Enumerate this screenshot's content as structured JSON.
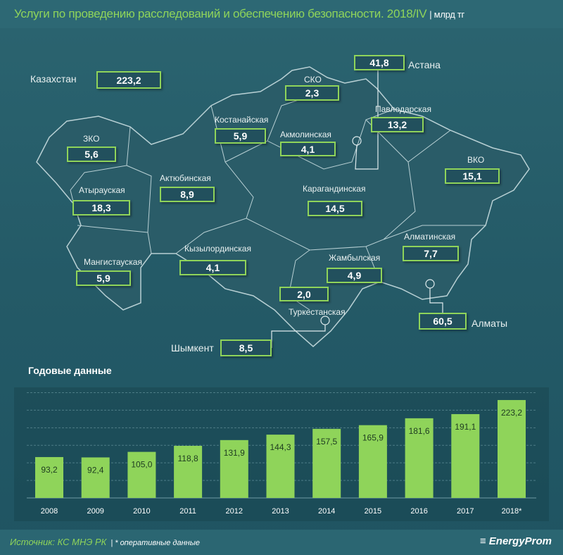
{
  "title": "Услуги по проведению расследований и обеспечению безопасности. 2018/IV",
  "unit": "| млрд тг",
  "map": {
    "total": {
      "name": "Казахстан",
      "value": "223,2"
    },
    "regions": [
      {
        "id": "sko",
        "name": "СКО",
        "value": "2,3"
      },
      {
        "id": "astana",
        "name": "Астана",
        "value": "41,8"
      },
      {
        "id": "kostanay",
        "name": "Костанайская",
        "value": "5,9"
      },
      {
        "id": "pavlodar",
        "name": "Павлодарская",
        "value": "13,2"
      },
      {
        "id": "akmola",
        "name": "Акмолинская",
        "value": "4,1"
      },
      {
        "id": "zko",
        "name": "ЗКО",
        "value": "5,6"
      },
      {
        "id": "vko",
        "name": "ВКО",
        "value": "15,1"
      },
      {
        "id": "aktobe",
        "name": "Актюбинская",
        "value": "8,9"
      },
      {
        "id": "atyrau",
        "name": "Атырауская",
        "value": "18,3"
      },
      {
        "id": "karaganda",
        "name": "Карагандинская",
        "value": "14,5"
      },
      {
        "id": "almatyobl",
        "name": "Алматинская",
        "value": "7,7"
      },
      {
        "id": "kyzylorda",
        "name": "Кызылординская",
        "value": "4,1"
      },
      {
        "id": "zhambyl",
        "name": "Жамбылская",
        "value": "4,9"
      },
      {
        "id": "mangistau",
        "name": "Мангистауская",
        "value": "5,9"
      },
      {
        "id": "turkestan",
        "name": "Туркестанская",
        "value": "2,0"
      },
      {
        "id": "almaty",
        "name": "Алматы",
        "value": "60,5"
      },
      {
        "id": "shymkent",
        "name": "Шымкент",
        "value": "8,5"
      }
    ]
  },
  "section_title": "Годовые данные",
  "chart_data": {
    "type": "bar",
    "categories": [
      "2008",
      "2009",
      "2010",
      "2011",
      "2012",
      "2013",
      "2014",
      "2015",
      "2016",
      "2017",
      "2018*"
    ],
    "values": [
      93.2,
      92.4,
      105.0,
      118.8,
      131.9,
      144.3,
      157.5,
      165.9,
      181.6,
      191.1,
      223.2
    ],
    "value_labels": [
      "93,2",
      "92,4",
      "105,0",
      "118,8",
      "131,9",
      "144,3",
      "157,5",
      "165,9",
      "181,6",
      "191,1",
      "223,2"
    ],
    "grid": true,
    "bar_color": "#8fd45a"
  },
  "footer": {
    "source": "Источник: КС МНЭ РК",
    "note": "| * оперативные данные",
    "logo": "EnergyProm"
  }
}
